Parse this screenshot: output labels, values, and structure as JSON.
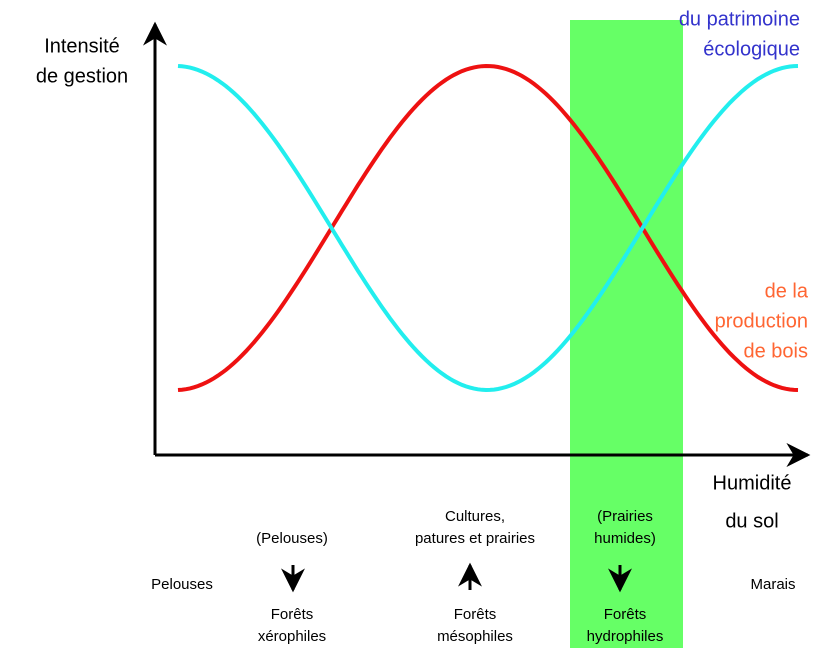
{
  "y_axis_label": [
    "Intensité",
    "de gestion"
  ],
  "x_axis_label": [
    "Humidité",
    "du sol"
  ],
  "curve_labels": {
    "ecological": [
      "du patrimoine",
      "écologique"
    ],
    "production": [
      "de la",
      "production",
      "de bois"
    ]
  },
  "bottom": {
    "left": "Pelouses",
    "right": "Marais",
    "columns": [
      {
        "top": [
          "(Pelouses)"
        ],
        "bottom": [
          "Forêts",
          "xérophiles"
        ]
      },
      {
        "top": [
          "Cultures,",
          "patures et prairies"
        ],
        "bottom": [
          "Forêts",
          "mésophiles"
        ]
      },
      {
        "top": [
          "(Prairies",
          "humides)"
        ],
        "bottom": [
          "Forêts",
          "hydrophiles"
        ]
      }
    ]
  }
}
